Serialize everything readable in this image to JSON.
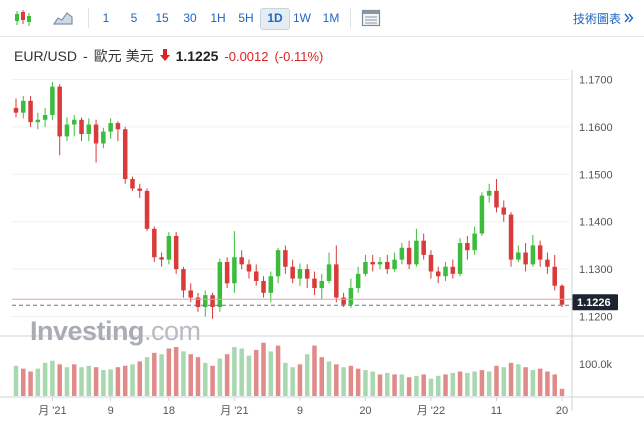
{
  "toolbar": {
    "timeframes": [
      "1",
      "5",
      "15",
      "30",
      "1H",
      "5H",
      "1D",
      "1W",
      "1M"
    ],
    "active_timeframe": "1D",
    "advanced_label": "技術圖表"
  },
  "quote": {
    "symbol": "EUR/USD",
    "separator": "-",
    "name": "歐元 美元",
    "price": "1.1225",
    "change": "-0.0012",
    "change_pct": "(-0.11%)",
    "direction": "down"
  },
  "watermark": {
    "brand": "Investing",
    "suffix": ".com"
  },
  "chart_data": {
    "type": "candlestick",
    "y_ticks": [
      "1.1700",
      "1.1600",
      "1.1500",
      "1.1400",
      "1.1300",
      "1.1200"
    ],
    "ylim": [
      1.118,
      1.172
    ],
    "volume_tick": "100.0k",
    "x_tick_labels": [
      "月 '21",
      "9",
      "18",
      "月 '21",
      "9",
      "20",
      "月 '22",
      "11",
      "20"
    ],
    "last_price_label": "1.1226",
    "colors": {
      "up": "#3dbb3d",
      "down": "#d93a3a",
      "vol_up": "#a8d8b0",
      "vol_down": "#e08a8a",
      "price_line": "#e6a0a0",
      "prev_line": "#5a7895"
    },
    "candles": [
      [
        1.164,
        1.163,
        1.166,
        1.162
      ],
      [
        1.163,
        1.1655,
        1.1665,
        1.1618
      ],
      [
        1.1655,
        1.161,
        1.1665,
        1.16
      ],
      [
        1.161,
        1.1615,
        1.163,
        1.1595
      ],
      [
        1.1615,
        1.1625,
        1.164,
        1.16
      ],
      [
        1.1625,
        1.1685,
        1.1695,
        1.1615
      ],
      [
        1.1685,
        1.158,
        1.169,
        1.154
      ],
      [
        1.158,
        1.1605,
        1.162,
        1.157
      ],
      [
        1.1605,
        1.1615,
        1.1625,
        1.158
      ],
      [
        1.1615,
        1.1585,
        1.162,
        1.157
      ],
      [
        1.1585,
        1.1605,
        1.1618,
        1.157
      ],
      [
        1.1605,
        1.1565,
        1.1615,
        1.1525
      ],
      [
        1.1565,
        1.159,
        1.1598,
        1.1555
      ],
      [
        1.159,
        1.1608,
        1.1618,
        1.1575
      ],
      [
        1.1608,
        1.1595,
        1.1612,
        1.157
      ],
      [
        1.1595,
        1.149,
        1.16,
        1.148
      ],
      [
        1.149,
        1.147,
        1.1495,
        1.1465
      ],
      [
        1.147,
        1.1465,
        1.148,
        1.145
      ],
      [
        1.1465,
        1.1385,
        1.147,
        1.138
      ],
      [
        1.1385,
        1.1325,
        1.139,
        1.1315
      ],
      [
        1.1325,
        1.132,
        1.1335,
        1.1305
      ],
      [
        1.132,
        1.137,
        1.1378,
        1.131
      ],
      [
        1.137,
        1.13,
        1.1378,
        1.129
      ],
      [
        1.13,
        1.1255,
        1.1305,
        1.124
      ],
      [
        1.1255,
        1.124,
        1.127,
        1.123
      ],
      [
        1.124,
        1.122,
        1.125,
        1.121
      ],
      [
        1.122,
        1.1245,
        1.1255,
        1.12
      ],
      [
        1.1245,
        1.122,
        1.125,
        1.1195
      ],
      [
        1.122,
        1.1315,
        1.1322,
        1.121
      ],
      [
        1.1315,
        1.127,
        1.1325,
        1.126
      ],
      [
        1.127,
        1.1325,
        1.138,
        1.125
      ],
      [
        1.1325,
        1.131,
        1.134,
        1.13
      ],
      [
        1.131,
        1.1295,
        1.132,
        1.128
      ],
      [
        1.1295,
        1.1275,
        1.131,
        1.1265
      ],
      [
        1.1275,
        1.125,
        1.1285,
        1.124
      ],
      [
        1.125,
        1.1285,
        1.1295,
        1.123
      ],
      [
        1.1285,
        1.134,
        1.1345,
        1.127
      ],
      [
        1.134,
        1.1305,
        1.135,
        1.129
      ],
      [
        1.1305,
        1.128,
        1.132,
        1.127
      ],
      [
        1.128,
        1.13,
        1.1312,
        1.1265
      ],
      [
        1.13,
        1.128,
        1.131,
        1.126
      ],
      [
        1.128,
        1.126,
        1.1295,
        1.1245
      ],
      [
        1.126,
        1.1275,
        1.129,
        1.1235
      ],
      [
        1.1275,
        1.131,
        1.1335,
        1.127
      ],
      [
        1.131,
        1.124,
        1.135,
        1.123
      ],
      [
        1.124,
        1.1225,
        1.125,
        1.122
      ],
      [
        1.1225,
        1.126,
        1.128,
        1.1218
      ],
      [
        1.126,
        1.129,
        1.1305,
        1.125
      ],
      [
        1.129,
        1.1315,
        1.133,
        1.1285
      ],
      [
        1.1315,
        1.131,
        1.133,
        1.1295
      ],
      [
        1.131,
        1.1315,
        1.1325,
        1.13
      ],
      [
        1.1315,
        1.13,
        1.133,
        1.129
      ],
      [
        1.13,
        1.132,
        1.1335,
        1.1295
      ],
      [
        1.132,
        1.1345,
        1.1355,
        1.131
      ],
      [
        1.1345,
        1.131,
        1.136,
        1.13
      ],
      [
        1.131,
        1.136,
        1.1385,
        1.1305
      ],
      [
        1.136,
        1.133,
        1.1375,
        1.132
      ],
      [
        1.133,
        1.1295,
        1.134,
        1.128
      ],
      [
        1.1295,
        1.1285,
        1.1305,
        1.127
      ],
      [
        1.1285,
        1.1305,
        1.1315,
        1.1275
      ],
      [
        1.1305,
        1.129,
        1.132,
        1.128
      ],
      [
        1.129,
        1.1355,
        1.1365,
        1.1285
      ],
      [
        1.1355,
        1.134,
        1.137,
        1.132
      ],
      [
        1.134,
        1.1375,
        1.139,
        1.133
      ],
      [
        1.1375,
        1.1455,
        1.1462,
        1.137
      ],
      [
        1.1455,
        1.1465,
        1.148,
        1.144
      ],
      [
        1.1465,
        1.143,
        1.149,
        1.142
      ],
      [
        1.143,
        1.1415,
        1.1445,
        1.14
      ],
      [
        1.1415,
        1.132,
        1.142,
        1.1305
      ],
      [
        1.132,
        1.1335,
        1.135,
        1.1315
      ],
      [
        1.1335,
        1.131,
        1.1355,
        1.1295
      ],
      [
        1.131,
        1.135,
        1.1372,
        1.1305
      ],
      [
        1.135,
        1.132,
        1.136,
        1.1305
      ],
      [
        1.132,
        1.1305,
        1.1335,
        1.129
      ],
      [
        1.1305,
        1.1265,
        1.133,
        1.1255
      ],
      [
        1.1265,
        1.1225,
        1.1268,
        1.122
      ]
    ],
    "volumes": [
      [
        42,
        "up"
      ],
      [
        38,
        "down"
      ],
      [
        34,
        "down"
      ],
      [
        38,
        "up"
      ],
      [
        46,
        "up"
      ],
      [
        49,
        "up"
      ],
      [
        44,
        "down"
      ],
      [
        40,
        "up"
      ],
      [
        44,
        "down"
      ],
      [
        40,
        "up"
      ],
      [
        42,
        "up"
      ],
      [
        40,
        "down"
      ],
      [
        36,
        "up"
      ],
      [
        37,
        "up"
      ],
      [
        40,
        "down"
      ],
      [
        42,
        "down"
      ],
      [
        44,
        "up"
      ],
      [
        48,
        "down"
      ],
      [
        54,
        "up"
      ],
      [
        60,
        "down"
      ],
      [
        58,
        "up"
      ],
      [
        66,
        "down"
      ],
      [
        68,
        "down"
      ],
      [
        62,
        "up"
      ],
      [
        58,
        "down"
      ],
      [
        54,
        "down"
      ],
      [
        46,
        "up"
      ],
      [
        42,
        "down"
      ],
      [
        52,
        "up"
      ],
      [
        58,
        "down"
      ],
      [
        68,
        "up"
      ],
      [
        66,
        "up"
      ],
      [
        56,
        "up"
      ],
      [
        64,
        "down"
      ],
      [
        74,
        "down"
      ],
      [
        62,
        "up"
      ],
      [
        70,
        "down"
      ],
      [
        46,
        "up"
      ],
      [
        40,
        "up"
      ],
      [
        44,
        "down"
      ],
      [
        58,
        "up"
      ],
      [
        70,
        "down"
      ],
      [
        54,
        "down"
      ],
      [
        48,
        "up"
      ],
      [
        44,
        "down"
      ],
      [
        40,
        "up"
      ],
      [
        42,
        "down"
      ],
      [
        38,
        "down"
      ],
      [
        36,
        "up"
      ],
      [
        34,
        "up"
      ],
      [
        30,
        "down"
      ],
      [
        32,
        "up"
      ],
      [
        30,
        "down"
      ],
      [
        30,
        "up"
      ],
      [
        26,
        "down"
      ],
      [
        28,
        "up"
      ],
      [
        30,
        "down"
      ],
      [
        24,
        "up"
      ],
      [
        28,
        "up"
      ],
      [
        30,
        "down"
      ],
      [
        32,
        "up"
      ],
      [
        34,
        "down"
      ],
      [
        32,
        "up"
      ],
      [
        34,
        "up"
      ],
      [
        36,
        "down"
      ],
      [
        34,
        "up"
      ],
      [
        42,
        "down"
      ],
      [
        40,
        "up"
      ],
      [
        46,
        "down"
      ],
      [
        44,
        "up"
      ],
      [
        40,
        "down"
      ],
      [
        36,
        "up"
      ],
      [
        38,
        "down"
      ],
      [
        34,
        "down"
      ],
      [
        30,
        "down"
      ],
      [
        10,
        "down"
      ]
    ]
  }
}
